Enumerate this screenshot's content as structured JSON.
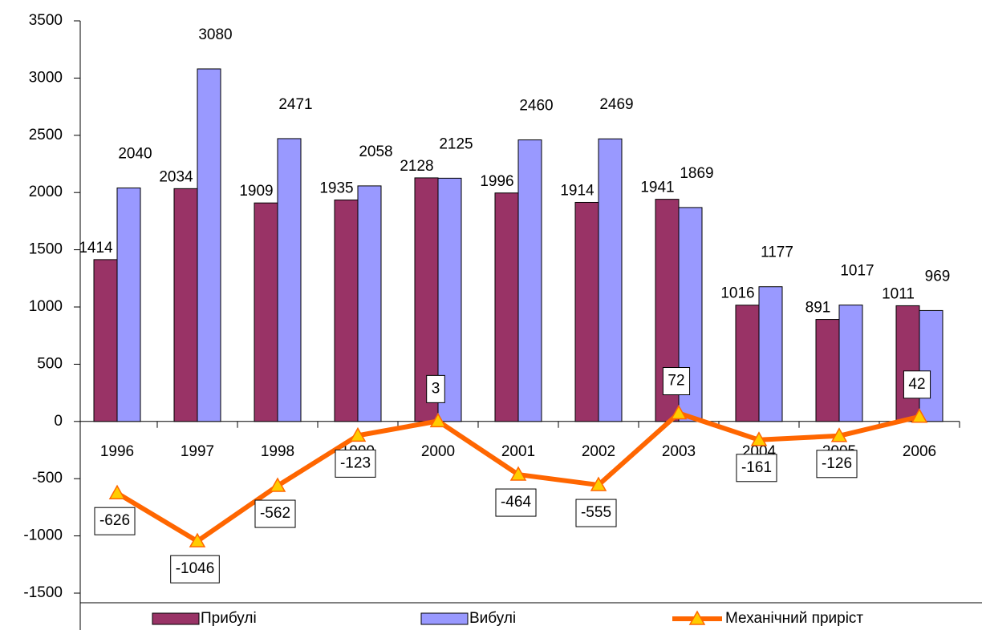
{
  "chart_data": {
    "type": "bar",
    "categories": [
      "1996",
      "1997",
      "1998",
      "1999",
      "2000",
      "2001",
      "2002",
      "2003",
      "2004",
      "2005",
      "2006"
    ],
    "series": [
      {
        "name": "Прибулі",
        "color": "#993366",
        "values": [
          1414,
          2034,
          1909,
          1935,
          2128,
          1996,
          1914,
          1941,
          1016,
          891,
          1011
        ]
      },
      {
        "name": "Вибулі",
        "color": "#9999ff",
        "values": [
          2040,
          3080,
          2471,
          2058,
          2125,
          2460,
          2469,
          1869,
          1177,
          1017,
          969
        ]
      },
      {
        "name": "Механічний приріст",
        "color": "#ff6600",
        "type": "line",
        "values": [
          -626,
          -1046,
          -562,
          -123,
          3,
          -464,
          -555,
          72,
          -161,
          -126,
          42
        ]
      }
    ],
    "ylim": [
      -1500,
      3500
    ],
    "yticks": [
      -1500,
      -1000,
      -500,
      0,
      500,
      1000,
      1500,
      2000,
      2500,
      3000,
      3500
    ],
    "legend": "bottom"
  }
}
